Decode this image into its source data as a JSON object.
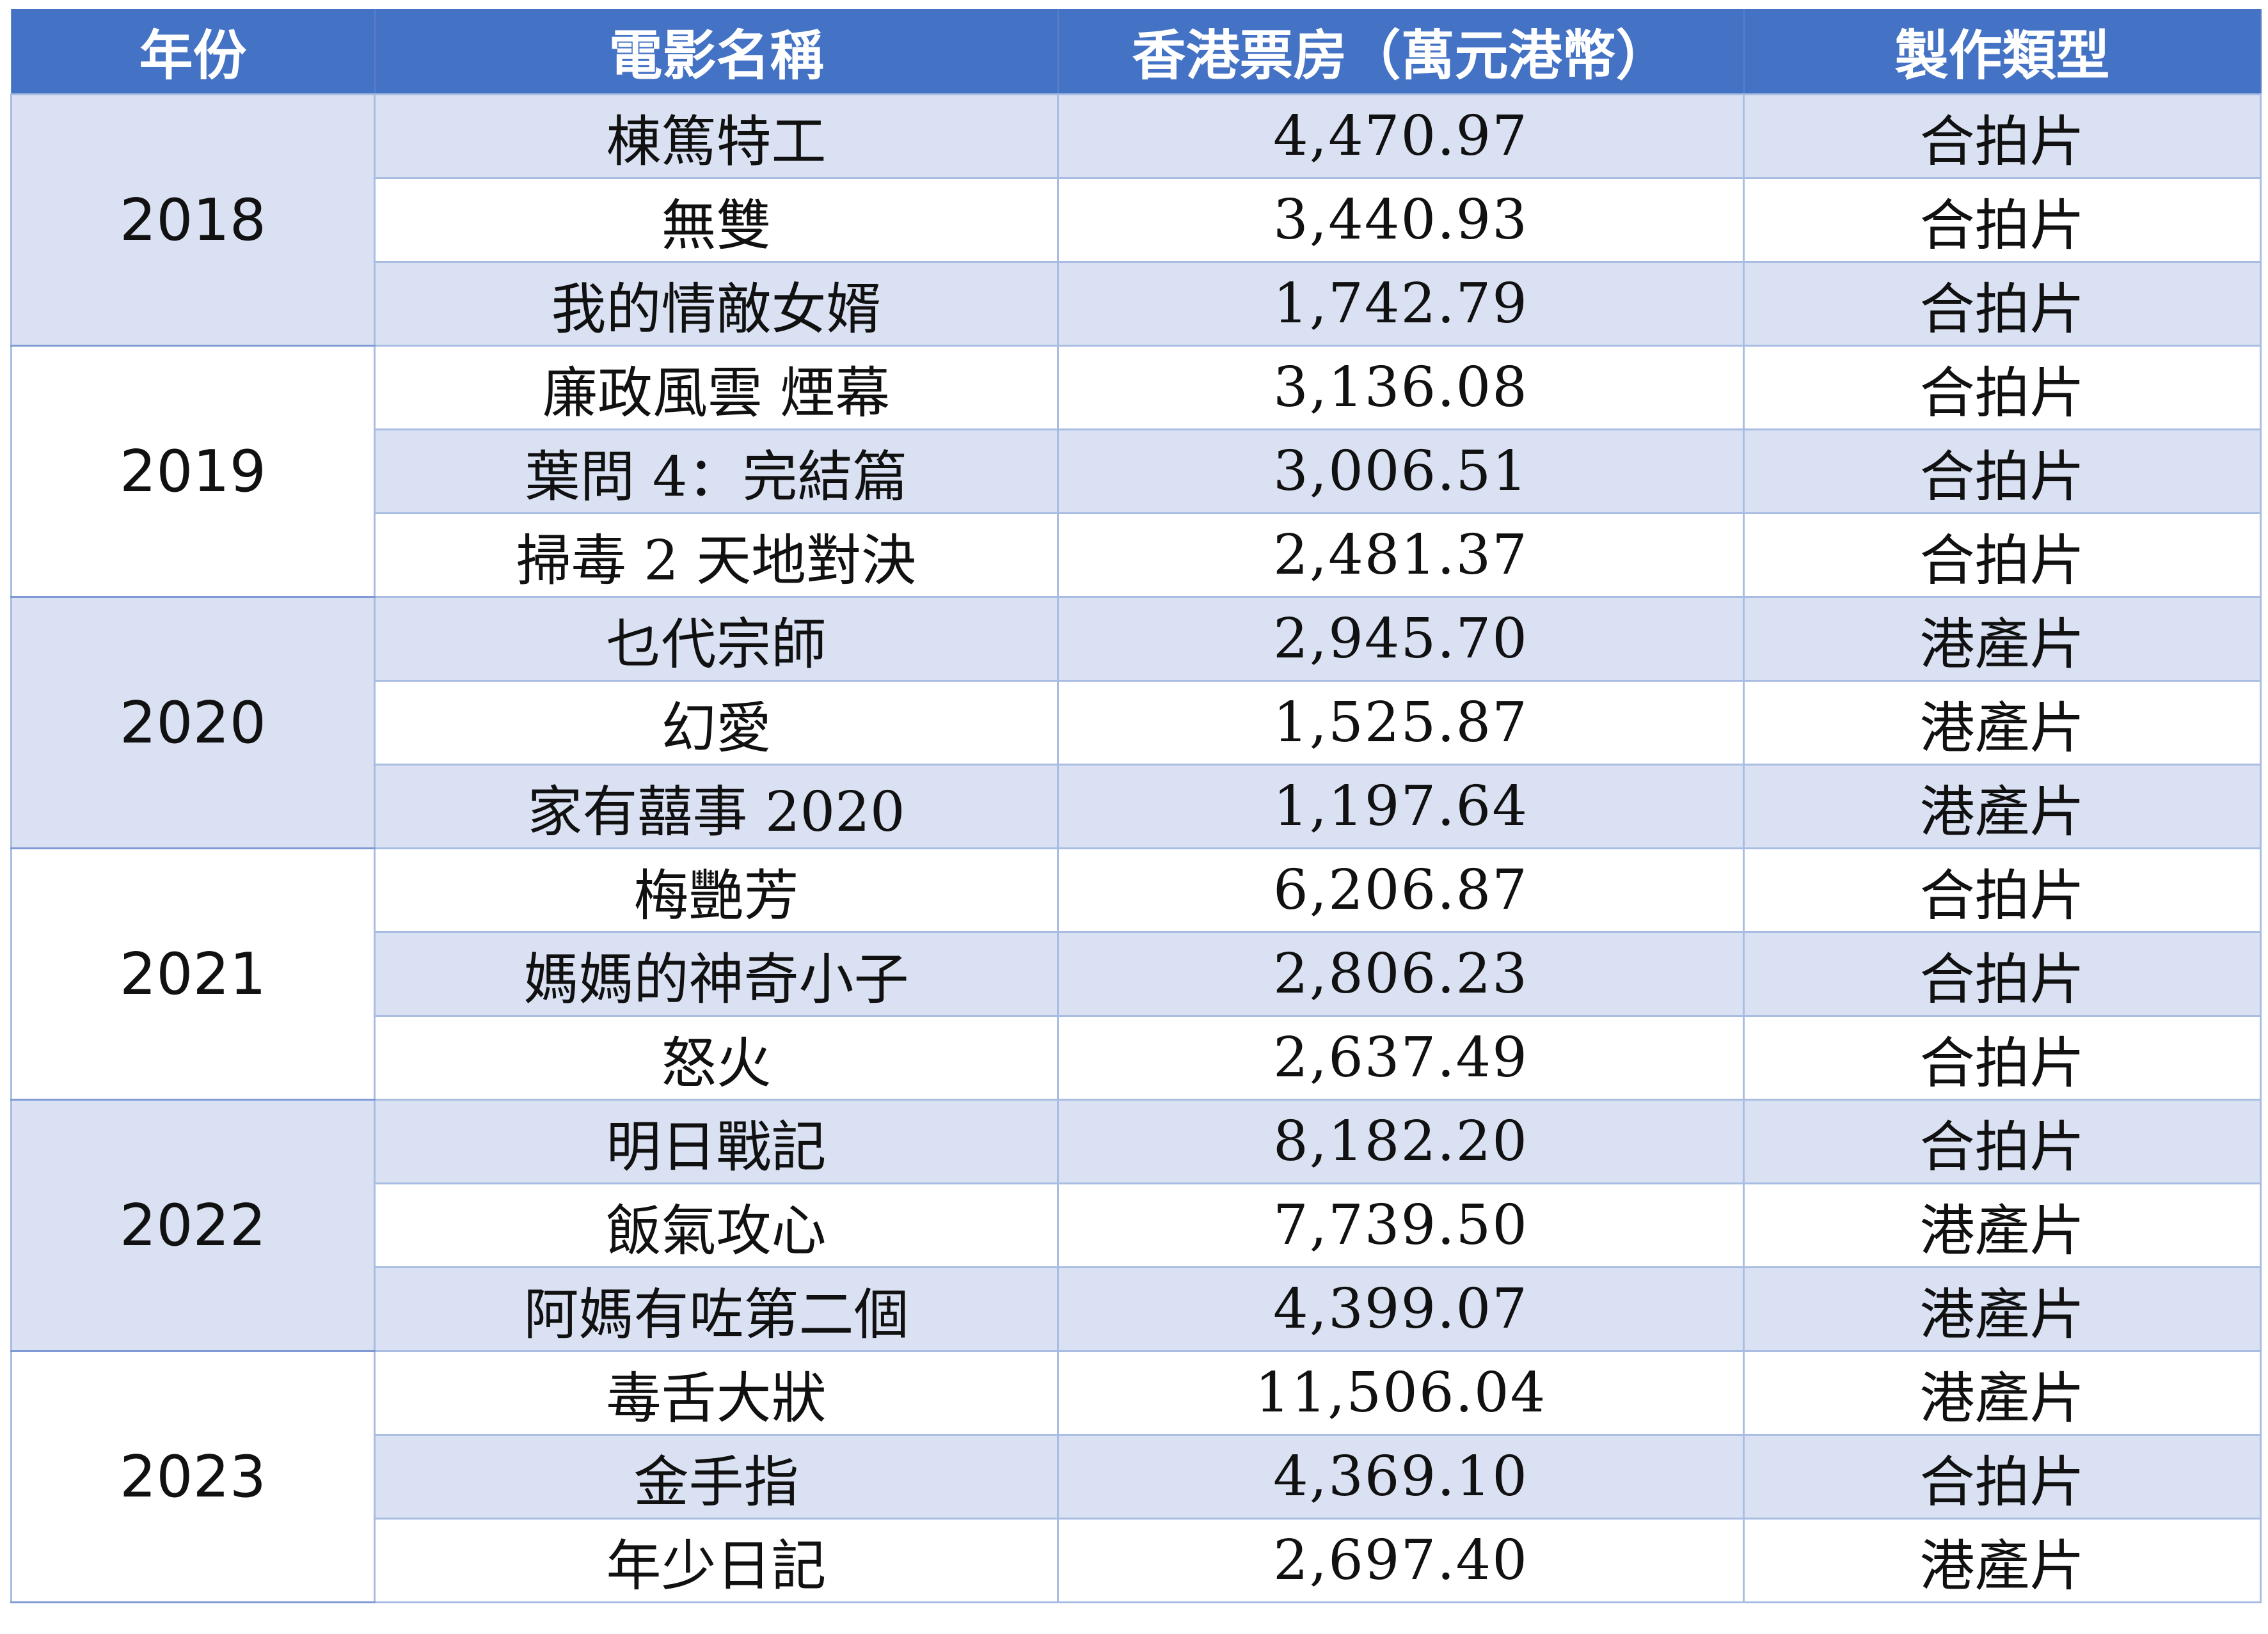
{
  "table": {
    "headers": [
      "年份",
      "電影名稱",
      "香港票房（萬元港幣）",
      "製作類型"
    ],
    "groups": [
      {
        "year": "2018",
        "rows": [
          {
            "title": "棟篤特工",
            "box_office": "4,470.97",
            "type": "合拍片"
          },
          {
            "title": "無雙",
            "box_office": "3,440.93",
            "type": "合拍片"
          },
          {
            "title": "我的情敵女婿",
            "box_office": "1,742.79",
            "type": "合拍片"
          }
        ]
      },
      {
        "year": "2019",
        "rows": [
          {
            "title": "廉政風雲 煙幕",
            "box_office": "3,136.08",
            "type": "合拍片"
          },
          {
            "title": "葉問 4：完結篇",
            "box_office": "3,006.51",
            "type": "合拍片"
          },
          {
            "title": "掃毒 2 天地對決",
            "box_office": "2,481.37",
            "type": "合拍片"
          }
        ]
      },
      {
        "year": "2020",
        "rows": [
          {
            "title": "乜代宗師",
            "box_office": "2,945.70",
            "type": "港產片"
          },
          {
            "title": "幻愛",
            "box_office": "1,525.87",
            "type": "港產片"
          },
          {
            "title": "家有囍事 2020",
            "box_office": "1,197.64",
            "type": "港產片"
          }
        ]
      },
      {
        "year": "2021",
        "rows": [
          {
            "title": "梅艷芳",
            "box_office": "6,206.87",
            "type": "合拍片"
          },
          {
            "title": "媽媽的神奇小子",
            "box_office": "2,806.23",
            "type": "合拍片"
          },
          {
            "title": "怒火",
            "box_office": "2,637.49",
            "type": "合拍片"
          }
        ]
      },
      {
        "year": "2022",
        "rows": [
          {
            "title": "明日戰記",
            "box_office": "8,182.20",
            "type": "合拍片"
          },
          {
            "title": "飯氣攻心",
            "box_office": "7,739.50",
            "type": "港產片"
          },
          {
            "title": "阿媽有咗第二個",
            "box_office": "4,399.07",
            "type": "港產片"
          }
        ]
      },
      {
        "year": "2023",
        "rows": [
          {
            "title": "毒舌大狀",
            "box_office": "11,506.04",
            "type": "港產片"
          },
          {
            "title": "金手指",
            "box_office": "4,369.10",
            "type": "合拍片"
          },
          {
            "title": "年少日記",
            "box_office": "2,697.40",
            "type": "港產片"
          }
        ]
      }
    ]
  }
}
